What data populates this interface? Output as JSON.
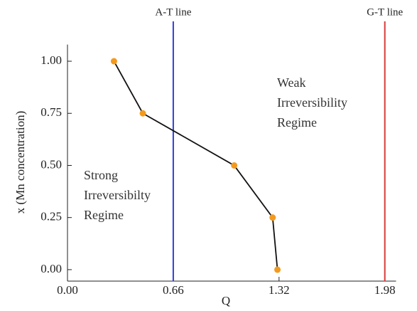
{
  "chart_data": {
    "type": "line",
    "x_label": "Q",
    "y_label": "x (Mn concentration)",
    "x": [
      0.29,
      0.47,
      1.04,
      1.28,
      1.31
    ],
    "series": [
      {
        "color": "#111111",
        "marker_color": "#f39a1e",
        "values": [
          1.0,
          0.75,
          0.5,
          0.25,
          0.0
        ]
      }
    ],
    "xlim": [
      0,
      2.05
    ],
    "ylim": [
      -0.055,
      1.08
    ],
    "xticks": [
      {
        "value": 0,
        "label": "0.00"
      },
      0.66,
      1.32,
      1.98
    ],
    "yticks": [
      {
        "value": 0,
        "label": "0.00"
      },
      0.25,
      {
        "value": 0.5,
        "label": "0.50"
      },
      0.75,
      {
        "value": 1,
        "label": "1.00"
      }
    ],
    "reference_lines": [
      {
        "name": "A-T line",
        "value": 0.66,
        "color": "#2f3fd8"
      },
      {
        "name": "G-T line",
        "value": 1.98,
        "color": "#d83a3a"
      }
    ],
    "annotations": [
      [
        "Strong",
        "Irreversibilty",
        "Regime"
      ],
      [
        "Weak",
        "Irreversibility",
        "Regime"
      ]
    ]
  }
}
